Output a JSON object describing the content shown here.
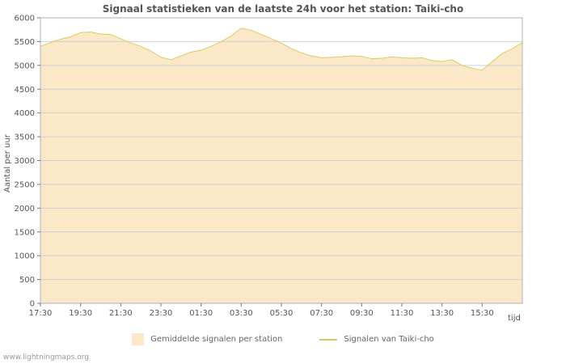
{
  "watermark": "www.lightningmaps.org",
  "chart_data": {
    "type": "area",
    "title": "Signaal statistieken van de laatste 24h voor het station: Taiki-cho",
    "xlabel": "tijd",
    "ylabel": "Aantal per uur",
    "ylim": [
      0,
      6000
    ],
    "yticks": [
      0,
      500,
      1000,
      1500,
      2000,
      2500,
      3000,
      3500,
      4000,
      4500,
      5000,
      5500,
      6000
    ],
    "xticks": [
      "17:30",
      "19:30",
      "21:30",
      "23:30",
      "01:30",
      "03:30",
      "05:30",
      "07:30",
      "09:30",
      "11:30",
      "13:30",
      "15:30"
    ],
    "x": [
      "17:30",
      "18:00",
      "18:30",
      "19:00",
      "19:30",
      "20:00",
      "20:30",
      "21:00",
      "21:30",
      "22:00",
      "22:30",
      "23:00",
      "23:30",
      "00:00",
      "00:30",
      "01:00",
      "01:30",
      "02:00",
      "02:30",
      "03:00",
      "03:30",
      "04:00",
      "04:30",
      "05:00",
      "05:30",
      "06:00",
      "06:30",
      "07:00",
      "07:30",
      "08:00",
      "08:30",
      "09:00",
      "09:30",
      "10:00",
      "10:30",
      "11:00",
      "11:30",
      "12:00",
      "12:30",
      "13:00",
      "13:30",
      "14:00",
      "14:30",
      "15:00",
      "15:30",
      "16:00",
      "16:30",
      "17:00",
      "17:30"
    ],
    "grid": true,
    "legend_position": "bottom",
    "colors": {
      "grid": "#d0d0d0",
      "axis": "#b0b0b0",
      "text": "#555555"
    },
    "series": [
      {
        "name": "Gemiddelde signalen per station",
        "type": "area",
        "color": "#fbe8c8",
        "values": [
          5400,
          5480,
          5550,
          5600,
          5690,
          5700,
          5660,
          5650,
          5560,
          5470,
          5400,
          5300,
          5170,
          5120,
          5200,
          5280,
          5320,
          5400,
          5500,
          5620,
          5780,
          5740,
          5650,
          5560,
          5470,
          5350,
          5260,
          5200,
          5160,
          5170,
          5180,
          5200,
          5190,
          5140,
          5150,
          5180,
          5160,
          5150,
          5160,
          5100,
          5080,
          5120,
          5000,
          4940,
          4900,
          5080,
          5250,
          5350,
          5480
        ]
      },
      {
        "name": "Signalen van Taiki-cho",
        "type": "line",
        "color": "#d9cc5f",
        "values": [
          5400,
          5480,
          5550,
          5600,
          5690,
          5700,
          5660,
          5650,
          5560,
          5470,
          5400,
          5300,
          5170,
          5120,
          5200,
          5280,
          5320,
          5400,
          5500,
          5620,
          5780,
          5740,
          5650,
          5560,
          5470,
          5350,
          5260,
          5200,
          5160,
          5170,
          5180,
          5200,
          5190,
          5140,
          5150,
          5180,
          5160,
          5150,
          5160,
          5100,
          5080,
          5120,
          5000,
          4940,
          4900,
          5080,
          5250,
          5350,
          5480
        ]
      }
    ]
  }
}
